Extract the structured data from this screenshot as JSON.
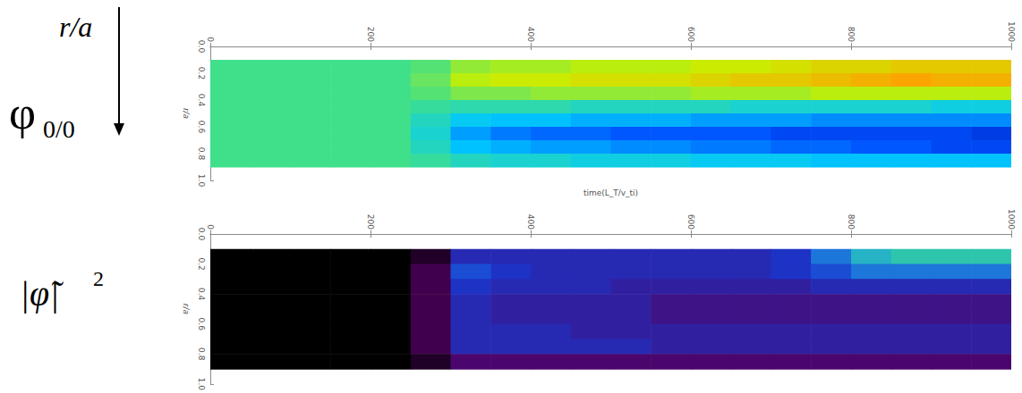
{
  "chart_data": [
    {
      "type": "heatmap",
      "xlabel": "time(L_T/v_ti)",
      "ylabel": "r/a",
      "annotations": [
        {
          "text": "r/a"
        },
        {
          "text": "φ",
          "subscript": "0/0"
        }
      ],
      "xlim": [
        0,
        1000
      ],
      "xticks": [
        0,
        200,
        400,
        600,
        800,
        1000
      ],
      "ylim": [
        0,
        1
      ],
      "yticks": [
        {
          "value": 0,
          "label": "0.0"
        },
        {
          "value": 0.2,
          "label": "0.2"
        },
        {
          "value": 0.4,
          "label": "0.4"
        },
        {
          "value": 0.6,
          "label": "0.6"
        },
        {
          "value": 0.8,
          "label": "0.8"
        },
        {
          "value": 1,
          "label": "1.0"
        }
      ],
      "x_edges": [
        0,
        50,
        100,
        150,
        200,
        250,
        300,
        350,
        400,
        450,
        500,
        550,
        600,
        650,
        700,
        750,
        800,
        850,
        900,
        950,
        1000
      ],
      "y_edges": [
        0.1,
        0.2,
        0.3,
        0.4,
        0.5,
        0.6,
        0.7,
        0.8,
        0.9
      ],
      "zlim": [
        -1,
        1
      ],
      "cells": [
        [
          0,
          0,
          0,
          0,
          0,
          0.05,
          0.2,
          0.25,
          0.25,
          0.3,
          0.3,
          0.3,
          0.35,
          0.35,
          0.4,
          0.45,
          0.45,
          0.5,
          0.5,
          0.5
        ],
        [
          0,
          0,
          0,
          0,
          0,
          0.1,
          0.3,
          0.35,
          0.35,
          0.4,
          0.4,
          0.4,
          0.45,
          0.5,
          0.5,
          0.55,
          0.6,
          0.65,
          0.6,
          0.6
        ],
        [
          0,
          0,
          0,
          0,
          0,
          0.05,
          0.15,
          0.15,
          0.2,
          0.2,
          0.2,
          0.2,
          0.25,
          0.25,
          0.25,
          0.3,
          0.3,
          0.3,
          0.3,
          0.3
        ],
        [
          0,
          0,
          0,
          0,
          0,
          -0.05,
          -0.1,
          -0.1,
          -0.1,
          -0.15,
          -0.15,
          -0.15,
          -0.15,
          -0.2,
          -0.2,
          -0.2,
          -0.2,
          -0.2,
          -0.25,
          -0.25
        ],
        [
          0,
          0,
          0,
          0,
          0,
          -0.15,
          -0.3,
          -0.35,
          -0.35,
          -0.4,
          -0.4,
          -0.4,
          -0.45,
          -0.45,
          -0.45,
          -0.5,
          -0.5,
          -0.5,
          -0.5,
          -0.5
        ],
        [
          0,
          0,
          0,
          0,
          0,
          -0.2,
          -0.45,
          -0.55,
          -0.6,
          -0.6,
          -0.65,
          -0.65,
          -0.65,
          -0.65,
          -0.7,
          -0.7,
          -0.7,
          -0.7,
          -0.7,
          -0.75
        ],
        [
          0,
          0,
          0,
          0,
          0,
          -0.15,
          -0.35,
          -0.4,
          -0.45,
          -0.45,
          -0.5,
          -0.5,
          -0.55,
          -0.55,
          -0.6,
          -0.6,
          -0.65,
          -0.65,
          -0.7,
          -0.7
        ],
        [
          0,
          0,
          0,
          0,
          0,
          -0.05,
          -0.15,
          -0.2,
          -0.2,
          -0.25,
          -0.25,
          -0.25,
          -0.3,
          -0.3,
          -0.3,
          -0.35,
          -0.35,
          -0.35,
          -0.35,
          -0.35
        ]
      ]
    },
    {
      "type": "heatmap",
      "ylabel": "r/a",
      "annotations": [
        {
          "text": "|φ̃|",
          "superscript": "2"
        }
      ],
      "xlim": [
        0,
        1000
      ],
      "xticks": [
        0,
        200,
        400,
        600,
        800,
        1000
      ],
      "ylim": [
        0,
        1
      ],
      "yticks": [
        {
          "value": 0,
          "label": "0.0"
        },
        {
          "value": 0.2,
          "label": "0.2"
        },
        {
          "value": 0.4,
          "label": "0.4"
        },
        {
          "value": 0.6,
          "label": "0.6"
        },
        {
          "value": 0.8,
          "label": "0.8"
        },
        {
          "value": 1,
          "label": "1.0"
        }
      ],
      "x_edges": [
        0,
        50,
        100,
        150,
        200,
        250,
        300,
        350,
        400,
        450,
        500,
        550,
        600,
        650,
        700,
        750,
        800,
        850,
        900,
        950,
        1000
      ],
      "y_edges": [
        0.1,
        0.2,
        0.3,
        0.4,
        0.5,
        0.6,
        0.7,
        0.8,
        0.9
      ],
      "zlim": [
        0,
        1
      ],
      "cells": [
        [
          0,
          0,
          0,
          0,
          0,
          0.05,
          0.3,
          0.3,
          0.3,
          0.3,
          0.3,
          0.3,
          0.3,
          0.3,
          0.35,
          0.45,
          0.55,
          0.6,
          0.6,
          0.6
        ],
        [
          0,
          0,
          0,
          0,
          0,
          0.1,
          0.4,
          0.35,
          0.3,
          0.3,
          0.3,
          0.3,
          0.3,
          0.3,
          0.35,
          0.4,
          0.45,
          0.45,
          0.45,
          0.45
        ],
        [
          0,
          0,
          0,
          0,
          0,
          0.1,
          0.35,
          0.3,
          0.3,
          0.3,
          0.25,
          0.25,
          0.25,
          0.25,
          0.25,
          0.3,
          0.3,
          0.3,
          0.3,
          0.3
        ],
        [
          0,
          0,
          0,
          0,
          0,
          0.1,
          0.3,
          0.25,
          0.25,
          0.25,
          0.25,
          0.2,
          0.2,
          0.2,
          0.2,
          0.2,
          0.2,
          0.2,
          0.2,
          0.2
        ],
        [
          0,
          0,
          0,
          0,
          0,
          0.1,
          0.3,
          0.25,
          0.25,
          0.25,
          0.25,
          0.2,
          0.2,
          0.2,
          0.2,
          0.2,
          0.2,
          0.2,
          0.2,
          0.2
        ],
        [
          0,
          0,
          0,
          0,
          0,
          0.1,
          0.3,
          0.3,
          0.3,
          0.25,
          0.25,
          0.25,
          0.25,
          0.25,
          0.25,
          0.25,
          0.25,
          0.25,
          0.25,
          0.25
        ],
        [
          0,
          0,
          0,
          0,
          0,
          0.1,
          0.3,
          0.3,
          0.3,
          0.3,
          0.3,
          0.25,
          0.25,
          0.25,
          0.25,
          0.25,
          0.25,
          0.25,
          0.25,
          0.25
        ],
        [
          0,
          0,
          0,
          0,
          0,
          0.05,
          0.15,
          0.15,
          0.15,
          0.15,
          0.15,
          0.15,
          0.15,
          0.15,
          0.15,
          0.15,
          0.15,
          0.15,
          0.15,
          0.15
        ]
      ]
    }
  ]
}
